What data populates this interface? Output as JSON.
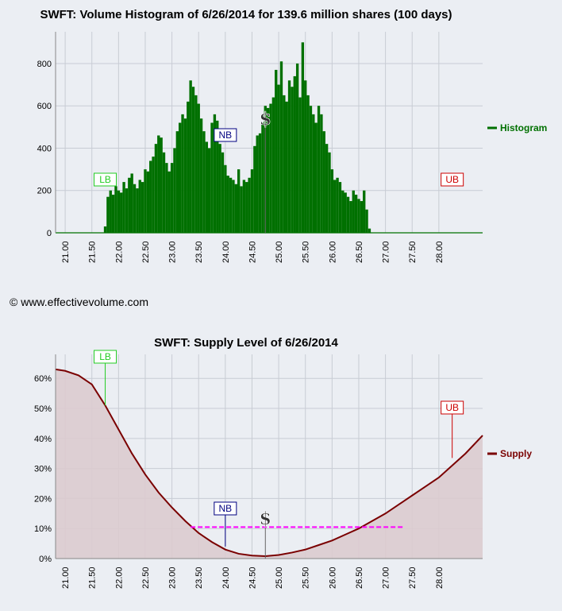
{
  "histogram_title": "SWFT: Volume Histogram of 6/26/2014 for 139.6 million shares (100 days)",
  "supply_title": "SWFT: Supply Level of 6/26/2014",
  "copyright": "© www.effectivevolume.com",
  "colors": {
    "histogram": "#007000",
    "supply": "#7a0000",
    "supply_fill": "#dccbcf",
    "avg_line": "#ff00ff",
    "lb": "#22cc22",
    "nb": "#000080",
    "ub": "#cc0000"
  },
  "chart_data": [
    {
      "type": "bar",
      "title": "SWFT: Volume Histogram of 6/26/2014 for 139.6 million shares (100 days)",
      "xlim": [
        20.82,
        28.82
      ],
      "ylim": [
        0,
        950
      ],
      "x_ticks": [
        "21.00",
        "21.50",
        "22.00",
        "22.50",
        "23.00",
        "23.50",
        "24.00",
        "24.50",
        "25.00",
        "25.50",
        "26.00",
        "26.50",
        "27.00",
        "27.50",
        "28.00"
      ],
      "y_ticks": [
        "0",
        "200",
        "400",
        "600",
        "800"
      ],
      "grid": true,
      "legend": "right",
      "series": [
        {
          "name": "Histogram",
          "x": [
            21.75,
            21.8,
            21.85,
            21.9,
            21.95,
            22.0,
            22.05,
            22.1,
            22.15,
            22.2,
            22.25,
            22.3,
            22.35,
            22.4,
            22.45,
            22.5,
            22.55,
            22.6,
            22.65,
            22.7,
            22.75,
            22.8,
            22.85,
            22.9,
            22.95,
            23.0,
            23.05,
            23.1,
            23.15,
            23.2,
            23.25,
            23.3,
            23.35,
            23.4,
            23.45,
            23.5,
            23.55,
            23.6,
            23.65,
            23.7,
            23.75,
            23.8,
            23.85,
            23.9,
            23.95,
            24.0,
            24.05,
            24.1,
            24.15,
            24.2,
            24.25,
            24.3,
            24.35,
            24.4,
            24.45,
            24.5,
            24.55,
            24.6,
            24.65,
            24.7,
            24.75,
            24.8,
            24.85,
            24.9,
            24.95,
            25.0,
            25.05,
            25.1,
            25.15,
            25.2,
            25.25,
            25.3,
            25.35,
            25.4,
            25.45,
            25.5,
            25.55,
            25.6,
            25.65,
            25.7,
            25.75,
            25.8,
            25.85,
            25.9,
            25.95,
            26.0,
            26.05,
            26.1,
            26.15,
            26.2,
            26.25,
            26.3,
            26.35,
            26.4,
            26.45,
            26.5,
            26.55,
            26.6,
            26.65,
            26.7
          ],
          "values": [
            30,
            170,
            200,
            180,
            220,
            200,
            190,
            240,
            210,
            260,
            280,
            230,
            210,
            250,
            240,
            300,
            290,
            340,
            360,
            420,
            460,
            450,
            380,
            330,
            290,
            330,
            400,
            480,
            520,
            560,
            540,
            620,
            720,
            690,
            650,
            610,
            540,
            480,
            430,
            400,
            520,
            560,
            530,
            420,
            380,
            320,
            270,
            260,
            250,
            230,
            300,
            220,
            250,
            240,
            260,
            300,
            410,
            460,
            470,
            520,
            600,
            590,
            610,
            640,
            770,
            700,
            810,
            650,
            620,
            720,
            690,
            740,
            800,
            640,
            900,
            720,
            650,
            600,
            560,
            520,
            600,
            560,
            480,
            420,
            380,
            300,
            250,
            260,
            240,
            200,
            190,
            170,
            150,
            200,
            180,
            160,
            150,
            200,
            110,
            20
          ]
        }
      ],
      "markers": [
        {
          "label": "LB",
          "x": 21.75,
          "value": 220
        },
        {
          "label": "NB",
          "x": 24.0,
          "value": 450
        },
        {
          "label": "$",
          "x": 24.75,
          "value": 560
        },
        {
          "label": "UB",
          "x": 28.25,
          "value": 220
        }
      ]
    },
    {
      "type": "area",
      "title": "SWFT: Supply Level of 6/26/2014",
      "xlim": [
        20.82,
        28.82
      ],
      "ylim": [
        0,
        0.68
      ],
      "x_ticks": [
        "21.00",
        "21.50",
        "22.00",
        "22.50",
        "23.00",
        "23.50",
        "24.00",
        "24.50",
        "25.00",
        "25.50",
        "26.00",
        "26.50",
        "27.00",
        "27.50",
        "28.00"
      ],
      "y_ticks": [
        "0%",
        "10%",
        "20%",
        "30%",
        "40%",
        "50%",
        "60%"
      ],
      "grid": true,
      "legend": "right",
      "series": [
        {
          "name": "Supply",
          "x": [
            20.82,
            21.0,
            21.25,
            21.5,
            21.75,
            22.0,
            22.25,
            22.5,
            22.75,
            23.0,
            23.25,
            23.5,
            23.75,
            24.0,
            24.25,
            24.5,
            24.75,
            25.0,
            25.25,
            25.5,
            25.75,
            26.0,
            26.25,
            26.5,
            26.75,
            27.0,
            27.25,
            27.5,
            27.75,
            28.0,
            28.25,
            28.5,
            28.82
          ],
          "values": [
            0.63,
            0.625,
            0.61,
            0.58,
            0.51,
            0.43,
            0.35,
            0.28,
            0.22,
            0.17,
            0.125,
            0.085,
            0.055,
            0.03,
            0.016,
            0.01,
            0.008,
            0.012,
            0.02,
            0.03,
            0.045,
            0.06,
            0.08,
            0.1,
            0.125,
            0.15,
            0.18,
            0.21,
            0.24,
            0.27,
            0.31,
            0.35,
            0.41
          ]
        }
      ],
      "reference_line": {
        "x": [
          23.35,
          27.35
        ],
        "value": 0.105
      },
      "markers": [
        {
          "label": "LB",
          "x": 21.75,
          "value": 0.51
        },
        {
          "label": "NB",
          "x": 24.0,
          "value": 0.04
        },
        {
          "label": "$",
          "x": 24.75,
          "value": 0.01
        },
        {
          "label": "UB",
          "x": 28.25,
          "value": 0.335
        }
      ]
    }
  ]
}
